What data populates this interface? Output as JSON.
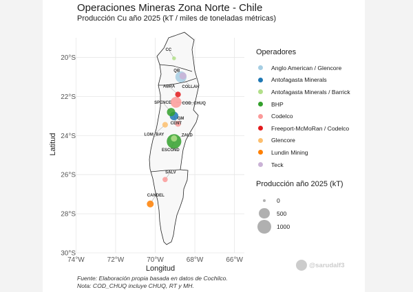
{
  "title": "Operaciones Mineras Zona Norte - Chile",
  "subtitle": "Producción Cu año 2025 (kT / miles de toneladas métricas)",
  "x_axis_title": "Longitud",
  "y_axis_title": "Latitud",
  "x_ticks": [
    "74°W",
    "72°W",
    "70°W",
    "68°W",
    "66°W"
  ],
  "y_ticks": [
    "20°S",
    "22°S",
    "24°S",
    "26°S",
    "28°S",
    "30°S"
  ],
  "legend_operators": {
    "title": "Operadores",
    "items": [
      {
        "label": "Anglo American / Glencore",
        "color": "#a6cee3"
      },
      {
        "label": "Antofagasta Minerals",
        "color": "#1f78b4"
      },
      {
        "label": "Antofagasta Minerals / Barrick",
        "color": "#b2df8a"
      },
      {
        "label": "BHP",
        "color": "#33a02c"
      },
      {
        "label": "Codelco",
        "color": "#fb9a99"
      },
      {
        "label": "Freeport-McMoRan / Codelco",
        "color": "#e31a1c"
      },
      {
        "label": "Glencore",
        "color": "#fdbf6f"
      },
      {
        "label": "Lundin Mining",
        "color": "#ff7f00"
      },
      {
        "label": "Teck",
        "color": "#cab2d6"
      }
    ]
  },
  "legend_size": {
    "title": "Producción año 2025 (kT)",
    "items": [
      {
        "label": "0",
        "value": 0
      },
      {
        "label": "500",
        "value": 500
      },
      {
        "label": "1000",
        "value": 1000
      }
    ]
  },
  "caption": {
    "line1": "Fuente: Elaboración propia basada en datos de Cochilco.",
    "line2": "Nota: COD_CHUQ incluye CHUQ, RT y MH."
  },
  "watermark": "@sarudalf3",
  "chart_data": {
    "type": "scatter",
    "xlabel": "Longitud",
    "ylabel": "Latitud",
    "xlim": [
      -74.5,
      -65.5
    ],
    "ylim": [
      -30,
      -19
    ],
    "grid": true,
    "legend_placement": "right",
    "mines": [
      {
        "label": "CC",
        "lon": -69.05,
        "lat": -20.05,
        "operator": "Antofagasta Minerals / Barrick",
        "production_kt": 10
      },
      {
        "label": "QB",
        "lon": -68.6,
        "lat": -20.95,
        "operator": "Teck",
        "production_kt": 150
      },
      {
        "label": "COLLAH",
        "lon": -68.7,
        "lat": -21.0,
        "operator": "Anglo American / Glencore",
        "production_kt": 580
      },
      {
        "label": "ABRA",
        "lon": -68.85,
        "lat": -21.9,
        "operator": "Freeport-McMoRan / Codelco",
        "production_kt": 70
      },
      {
        "label": "COD_CHUQ",
        "lon": -68.95,
        "lat": -22.3,
        "operator": "Codelco",
        "production_kt": 550
      },
      {
        "label": "SPENCE",
        "lon": -69.2,
        "lat": -22.8,
        "operator": "BHP",
        "production_kt": 250
      },
      {
        "label": "CENT",
        "lon": -69.05,
        "lat": -23.0,
        "operator": "Antofagasta Minerals",
        "production_kt": 280
      },
      {
        "label": "GM",
        "lon": -68.85,
        "lat": -23.4,
        "operator": "Codelco",
        "production_kt": 80
      },
      {
        "label": "LOM_BAY",
        "lon": -69.5,
        "lat": -23.45,
        "operator": "Glencore",
        "production_kt": 70
      },
      {
        "label": "ZALD",
        "lon": -69.05,
        "lat": -24.15,
        "operator": "Antofagasta Minerals / Barrick",
        "production_kt": 100
      },
      {
        "label": "ESCOND",
        "lon": -69.05,
        "lat": -24.3,
        "operator": "BHP",
        "production_kt": 1150
      },
      {
        "label": "SALV",
        "lon": -69.5,
        "lat": -26.25,
        "operator": "Codelco",
        "production_kt": 50
      },
      {
        "label": "CANDEL",
        "lon": -70.25,
        "lat": -27.5,
        "operator": "Lundin Mining",
        "production_kt": 140
      }
    ]
  }
}
